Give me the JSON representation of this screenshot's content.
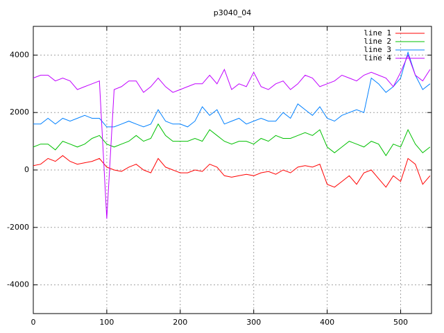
{
  "chart_data": {
    "type": "line",
    "title": "p3040_04",
    "x": [
      0,
      10,
      20,
      30,
      40,
      50,
      60,
      70,
      80,
      90,
      100,
      110,
      120,
      130,
      140,
      150,
      160,
      170,
      180,
      190,
      200,
      210,
      220,
      230,
      240,
      250,
      260,
      270,
      280,
      290,
      300,
      310,
      320,
      330,
      340,
      350,
      360,
      370,
      380,
      390,
      400,
      410,
      420,
      430,
      440,
      450,
      460,
      470,
      480,
      490,
      500,
      510,
      520,
      530,
      540
    ],
    "series": [
      {
        "name": "line 1",
        "color": "#ff0000",
        "values": [
          150,
          200,
          400,
          300,
          500,
          300,
          200,
          250,
          300,
          400,
          100,
          0,
          -50,
          100,
          200,
          0,
          -100,
          400,
          100,
          0,
          -100,
          -100,
          0,
          -50,
          200,
          100,
          -200,
          -250,
          -200,
          -150,
          -200,
          -100,
          -50,
          -150,
          0,
          -100,
          100,
          150,
          100,
          200,
          -500,
          -600,
          -400,
          -200,
          -500,
          -100,
          0,
          -300,
          -600,
          -200,
          -400,
          400,
          200,
          -500,
          -200
        ]
      },
      {
        "name": "line 2",
        "color": "#00c000",
        "values": [
          800,
          900,
          900,
          700,
          1000,
          900,
          800,
          900,
          1100,
          1200,
          900,
          800,
          900,
          1000,
          1200,
          1000,
          1100,
          1600,
          1200,
          1000,
          1000,
          1000,
          1100,
          1000,
          1400,
          1200,
          1000,
          900,
          1000,
          1000,
          900,
          1100,
          1000,
          1200,
          1100,
          1100,
          1200,
          1300,
          1200,
          1400,
          800,
          600,
          800,
          1000,
          900,
          800,
          1000,
          900,
          500,
          900,
          800,
          1400,
          900,
          600,
          800
        ]
      },
      {
        "name": "line 3",
        "color": "#0080ff",
        "values": [
          1600,
          1600,
          1800,
          1600,
          1800,
          1700,
          1800,
          1900,
          1800,
          1800,
          1500,
          1500,
          1600,
          1700,
          1600,
          1500,
          1600,
          2100,
          1700,
          1600,
          1600,
          1500,
          1700,
          2200,
          1900,
          2100,
          1600,
          1700,
          1800,
          1600,
          1700,
          1800,
          1700,
          1700,
          2000,
          1800,
          2300,
          2100,
          1900,
          2200,
          1800,
          1700,
          1900,
          2000,
          2100,
          2000,
          3200,
          3000,
          2700,
          2900,
          3200,
          4100,
          3300,
          2800,
          3000
        ]
      },
      {
        "name": "line 4",
        "color": "#c000ff",
        "values": [
          3200,
          3300,
          3300,
          3100,
          3200,
          3100,
          2800,
          2900,
          3000,
          3100,
          -1700,
          2800,
          2900,
          3100,
          3100,
          2700,
          2900,
          3200,
          2900,
          2700,
          2800,
          2900,
          3000,
          3000,
          3300,
          3000,
          3500,
          2800,
          3000,
          2900,
          3400,
          2900,
          2800,
          3000,
          3100,
          2800,
          3000,
          3300,
          3200,
          2900,
          3000,
          3100,
          3300,
          3200,
          3100,
          3300,
          3400,
          3300,
          3200,
          2900,
          3400,
          4000,
          3300,
          3100,
          3500
        ]
      }
    ],
    "xlim": [
      0,
      542
    ],
    "ylim": [
      -5000,
      5000
    ],
    "xticks": [
      0,
      100,
      200,
      300,
      400,
      500
    ],
    "yticks": [
      -4000,
      -2000,
      0,
      2000,
      4000
    ],
    "grid": true,
    "legend": "top right"
  }
}
